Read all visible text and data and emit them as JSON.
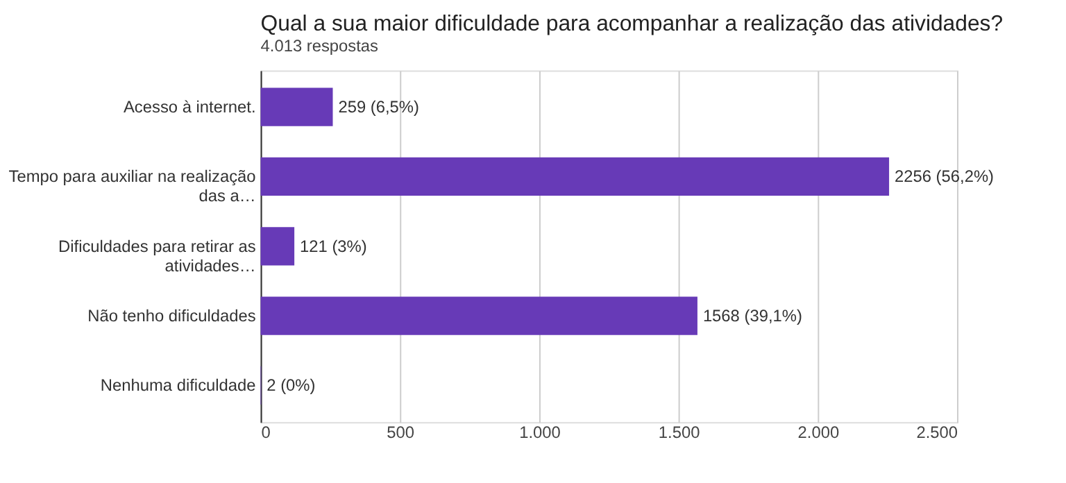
{
  "chart_data": {
    "type": "bar",
    "orientation": "horizontal",
    "title": "Qual  a sua maior dificuldade para acompanhar a realização das atividades?",
    "subtitle": "4.013 respostas",
    "categories": [
      "Acesso à internet.",
      "Tempo para auxiliar na realização das a…",
      "Dificuldades para retirar as atividades…",
      "Não tenho dificuldades",
      "Nenhuma dificuldade"
    ],
    "values": [
      259,
      2256,
      121,
      1568,
      2
    ],
    "value_labels": [
      "259 (6,5%)",
      "2256 (56,2%)",
      "121 (3%)",
      "1568 (39,1%)",
      "2 (0%)"
    ],
    "color": "#673ab7",
    "xlim": [
      0,
      2500
    ],
    "xticks": [
      0,
      500,
      {
        "value": 1000,
        "label": "1.000"
      },
      {
        "value": 1500,
        "label": "1.500"
      },
      {
        "value": 2000,
        "label": "2.000"
      },
      {
        "value": 2500,
        "label": "2.500"
      }
    ],
    "grid": "x"
  }
}
